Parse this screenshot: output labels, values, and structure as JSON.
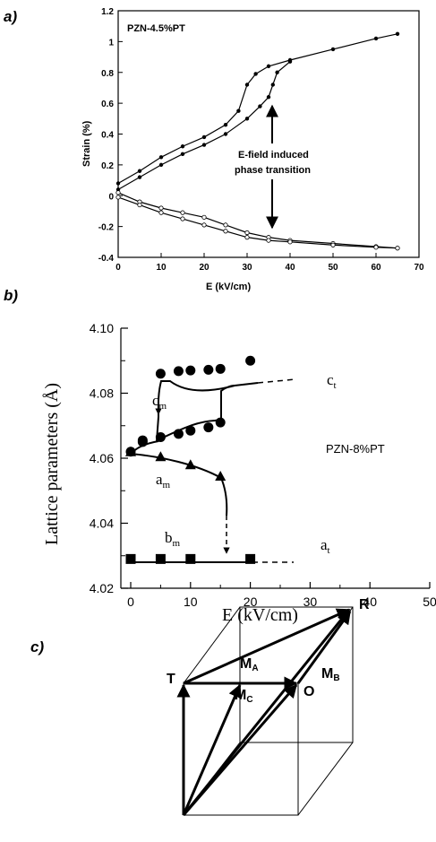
{
  "panels": {
    "a": {
      "label": "a)"
    },
    "b": {
      "label": "b)"
    },
    "c": {
      "label": "c)"
    }
  },
  "chart_data": [
    {
      "type": "scatter",
      "panel": "a",
      "annotation_sample": "PZN-4.5%PT",
      "annotation_transition": [
        "E-field induced",
        "phase transition"
      ],
      "xlabel": "E   (kV/cm)",
      "ylabel": "Strain   (%)",
      "xlim": [
        0,
        70
      ],
      "ylim": [
        -0.4,
        1.2
      ],
      "xticks": [
        "0",
        "10",
        "20",
        "30",
        "40",
        "50",
        "60",
        "70"
      ],
      "yticks": [
        "-0.4",
        "-0.2",
        "0",
        "0.2",
        "0.4",
        "0.6",
        "0.8",
        "1",
        "1.2"
      ],
      "series": [
        {
          "marker": "filled",
          "x": [
            0,
            5,
            10,
            15,
            20,
            25,
            28,
            30,
            32,
            35,
            40,
            50,
            60,
            65
          ],
          "y": [
            0.08,
            0.16,
            0.25,
            0.32,
            0.38,
            0.46,
            0.55,
            0.72,
            0.79,
            0.84,
            0.88,
            0.95,
            1.02,
            1.05
          ]
        },
        {
          "marker": "filled",
          "x": [
            0,
            5,
            10,
            15,
            20,
            25,
            30,
            33,
            35,
            36,
            37,
            40
          ],
          "y": [
            0.04,
            0.12,
            0.2,
            0.27,
            0.33,
            0.4,
            0.5,
            0.58,
            0.64,
            0.72,
            0.8,
            0.87
          ]
        },
        {
          "marker": "open",
          "x": [
            0,
            5,
            10,
            15,
            20,
            25,
            30,
            35,
            40,
            50,
            60,
            65
          ],
          "y": [
            0.02,
            -0.04,
            -0.08,
            -0.11,
            -0.14,
            -0.19,
            -0.24,
            -0.27,
            -0.29,
            -0.31,
            -0.33,
            -0.34
          ]
        },
        {
          "marker": "open",
          "x": [
            0,
            5,
            10,
            15,
            20,
            25,
            30,
            35,
            40,
            50,
            60,
            65
          ],
          "y": [
            -0.01,
            -0.06,
            -0.11,
            -0.15,
            -0.19,
            -0.23,
            -0.27,
            -0.29,
            -0.3,
            -0.32,
            -0.335,
            -0.34
          ]
        }
      ]
    },
    {
      "type": "scatter",
      "panel": "b",
      "annotation_sample": "PZN-8%PT",
      "xlabel": "E (kV/cm)",
      "ylabel": "Lattice parameters (Å)",
      "xlim": [
        -3,
        50
      ],
      "ylim": [
        4.02,
        4.1
      ],
      "xticks": [
        "0",
        "10",
        "20",
        "30",
        "40",
        "50"
      ],
      "yticks": [
        "4.02",
        "4.04",
        "4.06",
        "4.08",
        "4.10"
      ],
      "labels": {
        "cm": {
          "main": "c",
          "sub": "m"
        },
        "ct": {
          "main": "c",
          "sub": "t"
        },
        "am": {
          "main": "a",
          "sub": "m"
        },
        "bm": {
          "main": "b",
          "sub": "m"
        },
        "at": {
          "main": "a",
          "sub": "t"
        }
      },
      "series": [
        {
          "name": "c_m",
          "marker": "circle",
          "x": [
            2,
            5,
            8,
            10,
            13,
            15,
            15,
            13,
            10,
            8,
            5,
            2,
            0,
            20
          ],
          "y": [
            4.0655,
            4.0665,
            4.0675,
            4.0685,
            4.0695,
            4.071,
            4.0875,
            4.0872,
            4.087,
            4.0868,
            4.086,
            4.065,
            4.062,
            4.09
          ]
        },
        {
          "name": "a_m",
          "marker": "triangle",
          "x": [
            0,
            5,
            10,
            15
          ],
          "y": [
            4.062,
            4.0605,
            4.058,
            4.0545
          ]
        },
        {
          "name": "b_m",
          "marker": "square",
          "x": [
            0,
            5,
            10,
            20
          ],
          "y": [
            4.029,
            4.029,
            4.029,
            4.029
          ]
        }
      ]
    }
  ],
  "diagram": {
    "vertices": [
      "R",
      "T",
      "O"
    ],
    "vectors": [
      {
        "main": "M",
        "sub": "A"
      },
      {
        "main": "M",
        "sub": "C"
      },
      {
        "main": "M",
        "sub": "B"
      }
    ]
  }
}
